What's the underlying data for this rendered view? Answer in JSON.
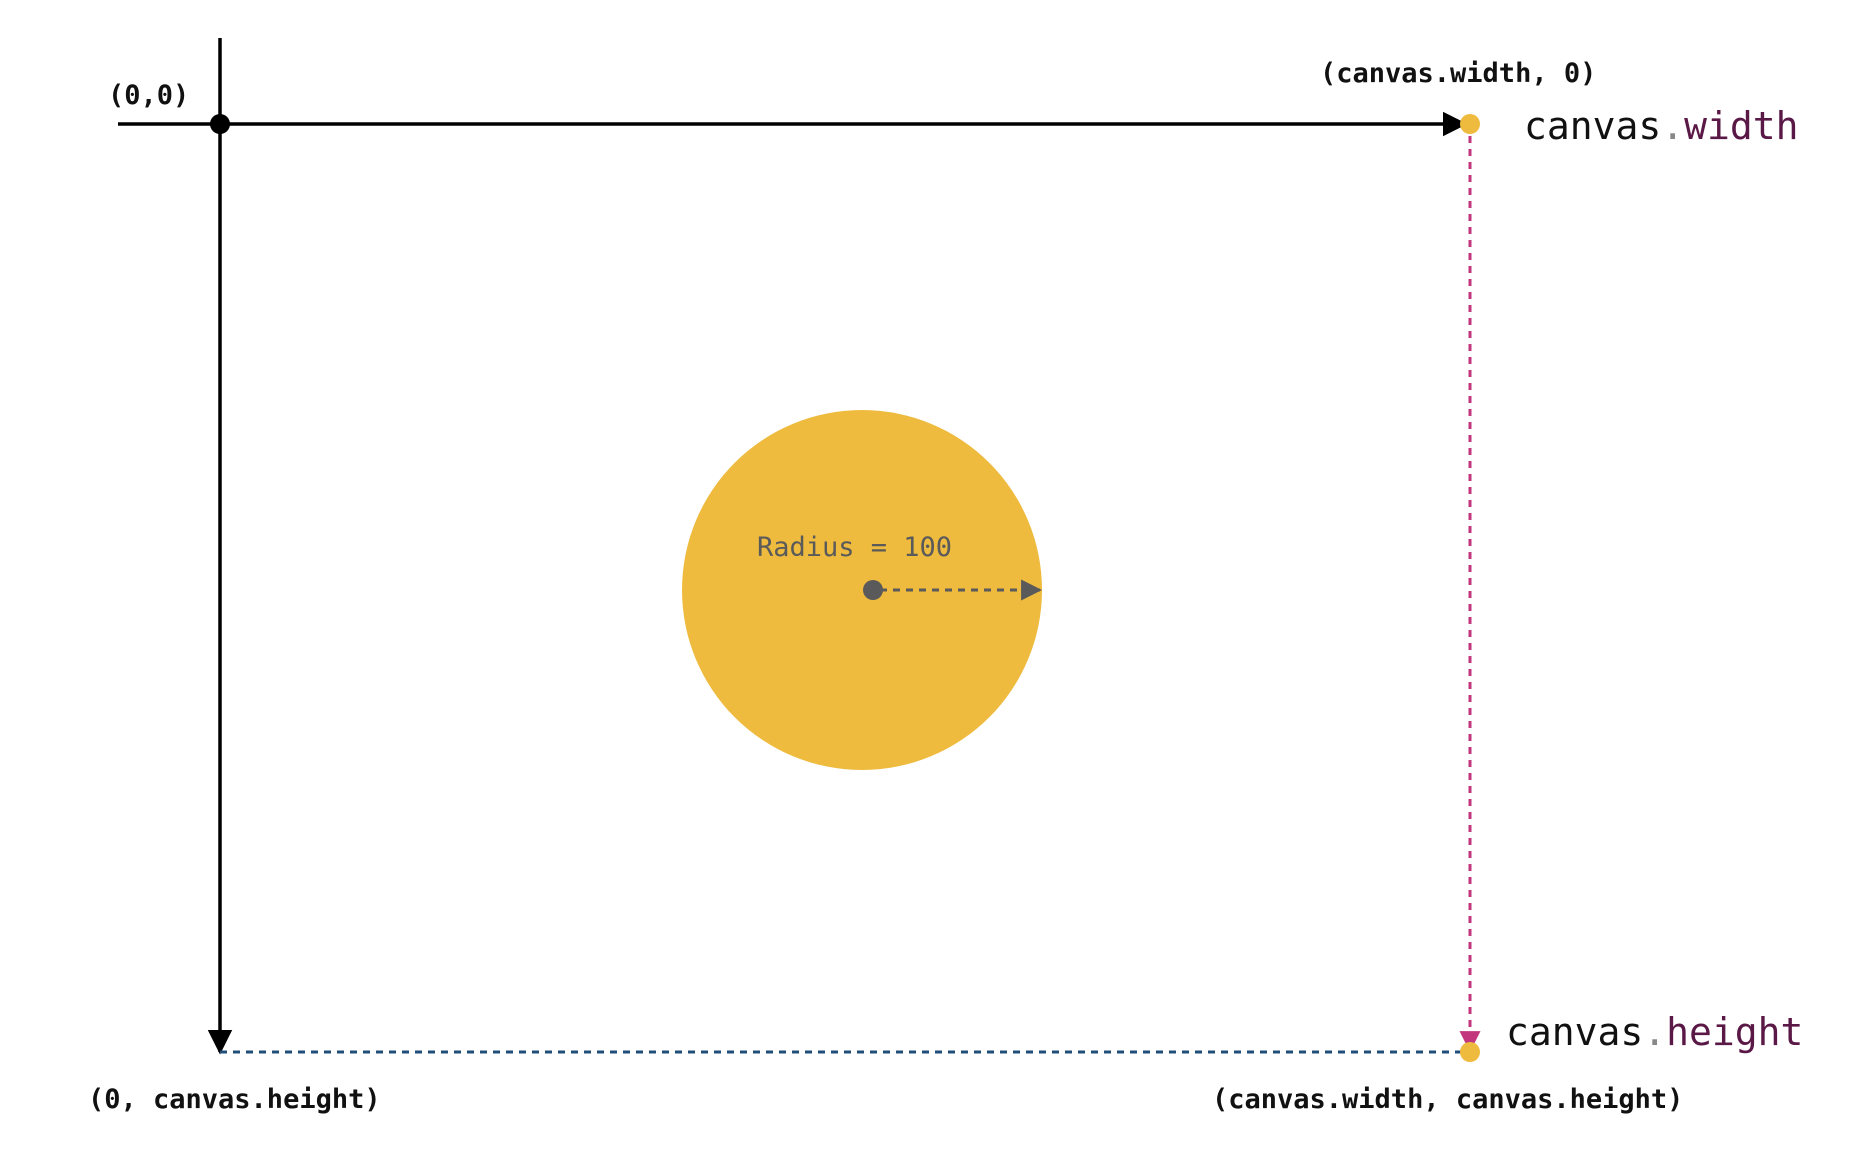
{
  "labels": {
    "origin": "(0,0)",
    "top_right": "(canvas.width, 0)",
    "bottom_left": "(0, canvas.height)",
    "bottom_right": "(canvas.width, canvas.height)",
    "radius": "Radius = 100"
  },
  "width_label": {
    "object": "canvas",
    "dot": ".",
    "property": "width"
  },
  "height_label": {
    "object": "canvas",
    "dot": ".",
    "property": "height"
  },
  "colors": {
    "axis": "#000000",
    "circle_fill": "#EEBB3E",
    "corner_dot": "#EEBB3E",
    "width_line": "#C2367E",
    "height_line": "#1F4E79",
    "radius_line": "#5A5A5A",
    "property_text": "#5A1846",
    "dot_text": "#888888",
    "object_text": "#111111"
  }
}
